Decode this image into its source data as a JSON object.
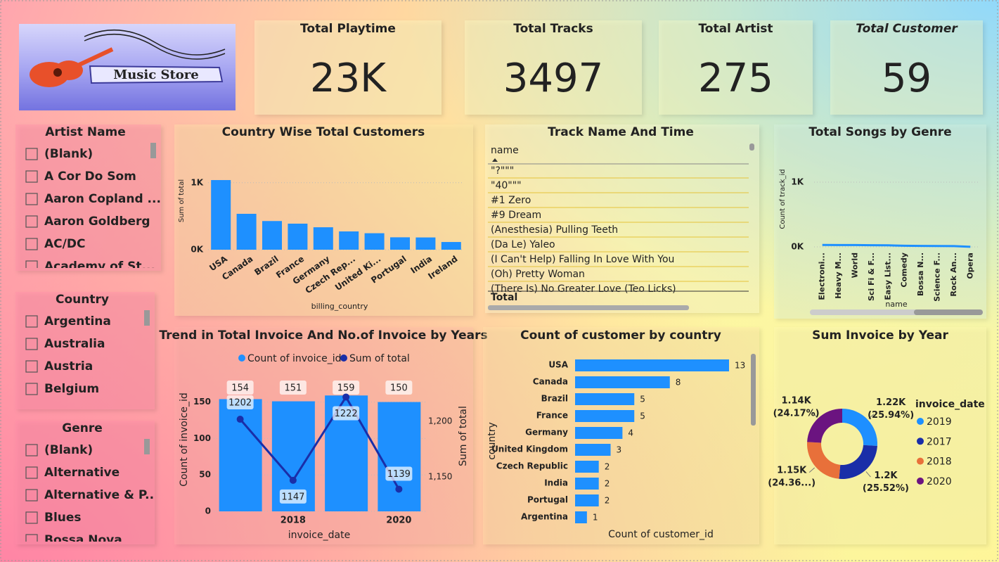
{
  "logo": {
    "text": "Music Store"
  },
  "cards": [
    {
      "title": "Total Playtime",
      "value": "23K"
    },
    {
      "title": "Total Tracks",
      "value": 3497
    },
    {
      "title": "Total Artist",
      "value": 275
    },
    {
      "title": "Total Customer",
      "value": 59
    }
  ],
  "slicers": [
    {
      "title": "Artist Name",
      "items": [
        "(Blank)",
        "A Cor Do Som",
        "Aaron Copland ...",
        "Aaron Goldberg",
        "AC/DC",
        "Academy of St..."
      ]
    },
    {
      "title": "Country",
      "items": [
        "Argentina",
        "Australia",
        "Austria",
        "Belgium"
      ]
    },
    {
      "title": "Genre",
      "items": [
        "(Blank)",
        "Alternative",
        "Alternative & P...",
        "Blues",
        "Bossa Nova"
      ]
    }
  ],
  "table": {
    "title": "Track Name And Time",
    "header": "name",
    "rows": [
      "\"?\"\"\"",
      "\"40\"\"\"",
      "#1 Zero",
      "#9 Dream",
      "(Anesthesia) Pulling Teeth",
      "(Da Le) Yaleo",
      "(I Can't Help) Falling In Love With You",
      "(Oh) Pretty Woman",
      "(There Is) No Greater Love (Teo Licks)"
    ],
    "total": "Total"
  },
  "chart_data": [
    {
      "type": "bar",
      "title": "Country Wise Total Customers",
      "y_label": "Sum of total",
      "x_label": "billing_country",
      "categories": [
        "USA",
        "Canada",
        "Brazil",
        "France",
        "Germany",
        "Czech Rep...",
        "United Ki...",
        "Portugal",
        "India",
        "Ireland"
      ],
      "values": [
        1040,
        536,
        428,
        389,
        335,
        273,
        246,
        185,
        183,
        115
      ],
      "color": "#1e90ff",
      "ylim": [
        0,
        1250
      ],
      "yticks": [
        {
          "value": 0,
          "label": "0K"
        },
        {
          "value": 1000,
          "label": "1K"
        }
      ],
      "grid": true
    },
    {
      "type": "line",
      "title": "Total Songs by Genre",
      "y_label": "Count of track_id",
      "x_label": "name",
      "categories": [
        "Electroni...",
        "Heavy M...",
        "World",
        "Sci Fi & F...",
        "Easy List...",
        "Comedy",
        "Bossa N...",
        "Science F...",
        "Rock An...",
        "Opera"
      ],
      "values": [
        30,
        28,
        28,
        26,
        24,
        17,
        15,
        13,
        12,
        1
      ],
      "color": "#1e90ff",
      "ylim": [
        0,
        1250
      ],
      "yticks": [
        {
          "value": 0,
          "label": "0K"
        },
        {
          "value": 1000,
          "label": "1K"
        }
      ],
      "grid": true
    },
    {
      "type": "combo",
      "title": "Trend in Total Invoice And No.of Invoice by Years",
      "x_label": "invoice_date",
      "y_label": "Count of invoice_id",
      "y2_label": "Sum of total",
      "categories": [
        null,
        2018,
        null,
        2020
      ],
      "series": [
        {
          "name": "Count of invoice_id",
          "type": "bar",
          "color": "#1e90ff",
          "values": [
            154,
            151,
            159,
            150
          ]
        },
        {
          "name": "Sum of total",
          "type": "line",
          "axis": "y2",
          "color": "#1a2ea8",
          "values": [
            1202,
            1147,
            1222,
            1139
          ]
        }
      ],
      "ylim": [
        0,
        166
      ],
      "yticks": [
        0,
        50,
        100,
        150
      ],
      "y2lim": [
        1119,
        1228
      ],
      "y2ticks": [
        {
          "value": 1150,
          "label": "1,150"
        },
        {
          "value": 1200,
          "label": "1,200"
        }
      ],
      "grid": true
    },
    {
      "type": "hbar",
      "title": "Count of customer by country",
      "x_label": "Count of customer_id",
      "y_label": "country",
      "categories": [
        "USA",
        "Canada",
        "Brazil",
        "France",
        "Germany",
        "United Kingdom",
        "Czech Republic",
        "India",
        "Portugal",
        "Argentina"
      ],
      "values": [
        13,
        8,
        5,
        5,
        4,
        3,
        2,
        2,
        2,
        1
      ],
      "color": "#1e90ff",
      "xlim": [
        0,
        13
      ]
    },
    {
      "type": "donut",
      "title": "Sum Invoice by Year",
      "legend_title": "invoice_date",
      "categories": [
        "2019",
        "2017",
        "2018",
        "2020"
      ],
      "values": [
        1221.7,
        1201.9,
        1147.4,
        1138.5
      ],
      "value_labels": [
        "1.22K",
        "1.2K",
        "1.15K",
        "1.14K"
      ],
      "percent_labels": [
        "(25.94%)",
        "(25.52%)",
        "(24.36...)",
        "(24.17%)"
      ],
      "colors": [
        "#1e8fff",
        "#1a2ea8",
        "#e8703a",
        "#6b1480"
      ]
    }
  ]
}
